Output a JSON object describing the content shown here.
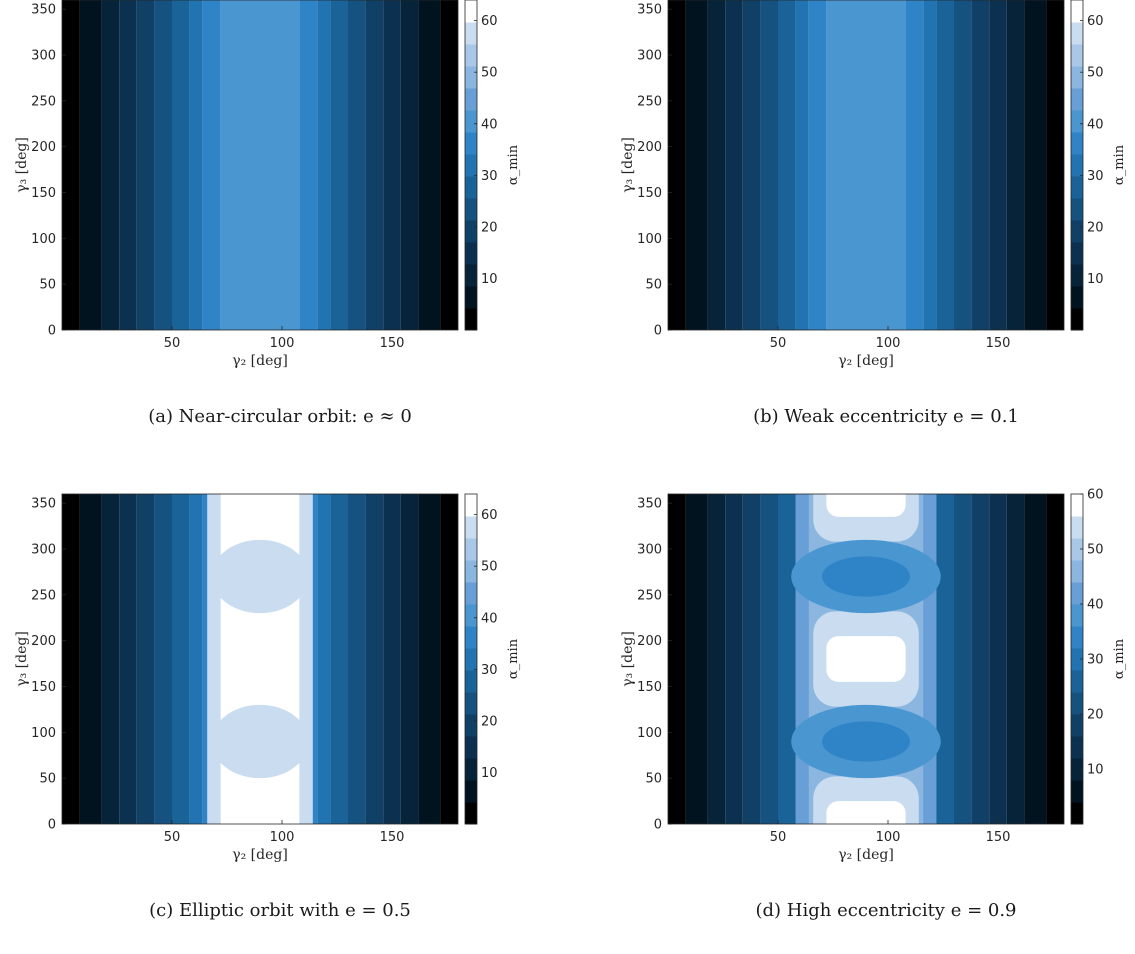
{
  "shared": {
    "xlabel": "γ₂ [deg]",
    "ylabel": "γ₃ [deg]",
    "colorbar_label": "α_min",
    "colormap": [
      "#000000",
      "#021320",
      "#06233a",
      "#0b3050",
      "#104066",
      "#15527f",
      "#1a6399",
      "#2273b2",
      "#2e84c6",
      "#4a96d0",
      "#689fd6",
      "#8ab6df",
      "#a9c8e8",
      "#c9dcf0",
      "#ffffff"
    ]
  },
  "captions": [
    "(a) Near-circular orbit: e ≈ 0",
    "(b) Weak eccentricity e = 0.1",
    "(c) Elliptic orbit with e = 0.5",
    "(d) High eccentricity e = 0.9"
  ],
  "chart_data": [
    {
      "type": "heatmap",
      "eccentricity_shown": "e ≈ 0",
      "xlabel": "γ₂ [deg]",
      "ylabel": "γ₃ [deg]",
      "xlim": [
        0,
        180
      ],
      "ylim": [
        0,
        360
      ],
      "xticks": [
        50,
        100,
        150
      ],
      "yticks": [
        0,
        50,
        100,
        150,
        200,
        250,
        300,
        350
      ],
      "colorbar": {
        "label": "α_min",
        "ticks": [
          10,
          20,
          30,
          40,
          50,
          60
        ],
        "max": 64
      },
      "contour_levels_deg": [
        0,
        4.5,
        9,
        13.5,
        18,
        22.5,
        27,
        31.5,
        36,
        40.5,
        45,
        49.5,
        54,
        58.5,
        63
      ],
      "x_band_edges_deg": [
        0,
        8,
        18,
        26,
        34,
        42,
        50,
        58,
        64,
        72,
        108,
        116,
        122,
        130,
        138,
        146,
        154,
        162,
        172,
        180
      ],
      "white_region": {
        "x_range_deg": [
          72,
          108
        ],
        "value": "max"
      },
      "grid": false
    },
    {
      "type": "heatmap",
      "eccentricity_shown": "e = 0.1",
      "xlabel": "γ₂ [deg]",
      "ylabel": "γ₃ [deg]",
      "xlim": [
        0,
        180
      ],
      "ylim": [
        0,
        360
      ],
      "xticks": [
        50,
        100,
        150
      ],
      "yticks": [
        0,
        50,
        100,
        150,
        200,
        250,
        300,
        350
      ],
      "colorbar": {
        "label": "α_min",
        "ticks": [
          10,
          20,
          30,
          40,
          50,
          60
        ],
        "max": 64
      },
      "x_band_edges_deg": [
        0,
        8,
        18,
        26,
        34,
        42,
        50,
        58,
        64,
        72,
        108,
        116,
        122,
        130,
        138,
        146,
        154,
        162,
        172,
        180
      ],
      "white_region": {
        "x_range_deg": [
          72,
          108
        ],
        "value": "max"
      },
      "grid": false
    },
    {
      "type": "heatmap",
      "eccentricity_shown": "e = 0.5",
      "xlabel": "γ₂ [deg]",
      "ylabel": "γ₃ [deg]",
      "xlim": [
        0,
        180
      ],
      "ylim": [
        0,
        360
      ],
      "xticks": [
        50,
        100,
        150
      ],
      "yticks": [
        0,
        50,
        100,
        150,
        200,
        250,
        300,
        350
      ],
      "colorbar": {
        "label": "α_min",
        "ticks": [
          10,
          20,
          30,
          40,
          50,
          60
        ],
        "max": 64
      },
      "x_band_edges_deg": [
        0,
        8,
        18,
        26,
        34,
        42,
        50,
        58,
        64,
        72,
        108,
        116,
        122,
        130,
        138,
        146,
        154,
        162,
        172,
        180
      ],
      "light_lobes_centers_deg": [
        [
          90,
          90
        ],
        [
          90,
          270
        ]
      ],
      "white_regions": [
        {
          "x_range_deg": [
            72,
            108
          ],
          "y_range_deg": [
            0,
            70
          ]
        },
        {
          "x_range_deg": [
            72,
            108
          ],
          "y_range_deg": [
            112,
            248
          ]
        },
        {
          "x_range_deg": [
            72,
            108
          ],
          "y_range_deg": [
            292,
            360
          ]
        }
      ],
      "grid": false
    },
    {
      "type": "heatmap",
      "eccentricity_shown": "e = 0.9",
      "xlabel": "γ₂ [deg]",
      "ylabel": "γ₃ [deg]",
      "xlim": [
        0,
        180
      ],
      "ylim": [
        0,
        360
      ],
      "xticks": [
        50,
        100,
        150
      ],
      "yticks": [
        0,
        50,
        100,
        150,
        200,
        250,
        300,
        350
      ],
      "colorbar": {
        "label": "α_min",
        "ticks": [
          10,
          20,
          30,
          40,
          50,
          60
        ],
        "max": 60
      },
      "x_band_edges_deg": [
        0,
        8,
        18,
        26,
        34,
        42,
        50,
        58,
        64,
        72,
        108,
        116,
        122,
        130,
        138,
        146,
        154,
        162,
        172,
        180
      ],
      "dark_spots_centers_deg": [
        [
          90,
          90
        ],
        [
          90,
          270
        ]
      ],
      "white_islands_centers_deg": [
        [
          90,
          0
        ],
        [
          90,
          180
        ],
        [
          90,
          360
        ]
      ],
      "grid": false
    }
  ]
}
